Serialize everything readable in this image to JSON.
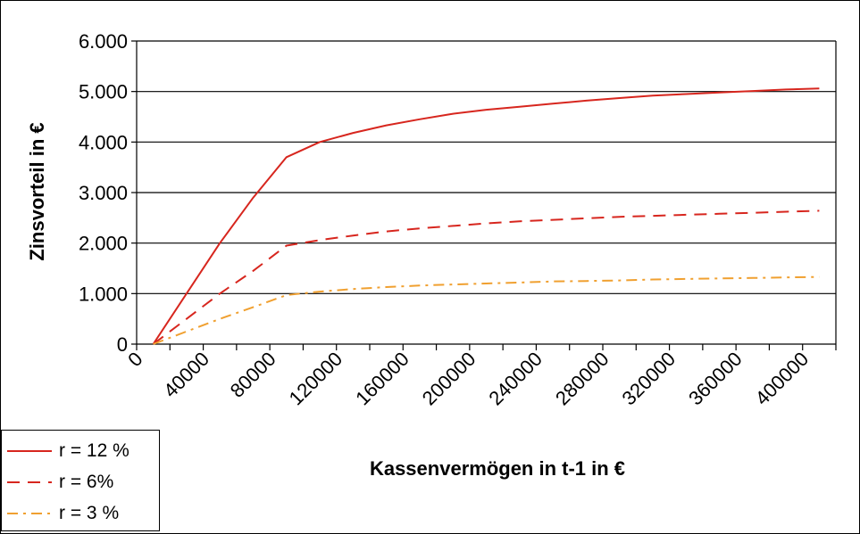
{
  "chart_data": {
    "type": "line",
    "title": "",
    "xlabel": "Kassenvermögen in t-1 in €",
    "ylabel": "Zinsvorteil in €",
    "xlim": [
      0,
      420000
    ],
    "ylim": [
      0,
      6000
    ],
    "x_ticks": [
      0,
      40000,
      80000,
      120000,
      160000,
      200000,
      240000,
      280000,
      320000,
      360000,
      400000
    ],
    "x_tick_labels": [
      "0",
      "40000",
      "80000",
      "120000",
      "160000",
      "200000",
      "240000",
      "280000",
      "320000",
      "360000",
      "400000"
    ],
    "y_ticks": [
      0,
      1000,
      2000,
      3000,
      4000,
      5000,
      6000
    ],
    "y_tick_labels": [
      "0",
      "1.000",
      "2.000",
      "3.000",
      "4.000",
      "5.000",
      "6.000"
    ],
    "grid": "horizontal",
    "legend_position": "bottom-left",
    "series": [
      {
        "name": "r = 12 %",
        "color": "#d7261e",
        "style": "solid",
        "x": [
          10000,
          30000,
          50000,
          70000,
          90000,
          110000,
          130000,
          150000,
          170000,
          190000,
          210000,
          230000,
          250000,
          270000,
          290000,
          310000,
          330000,
          350000,
          370000,
          390000,
          410000
        ],
        "y": [
          0,
          1000,
          2000,
          2900,
          3700,
          4000,
          4180,
          4330,
          4450,
          4560,
          4640,
          4700,
          4760,
          4820,
          4870,
          4920,
          4950,
          4980,
          5010,
          5040,
          5060
        ]
      },
      {
        "name": "r = 6%",
        "color": "#d7261e",
        "style": "dashed",
        "x": [
          10000,
          30000,
          50000,
          70000,
          90000,
          110000,
          130000,
          150000,
          170000,
          190000,
          210000,
          230000,
          250000,
          270000,
          290000,
          310000,
          330000,
          350000,
          370000,
          390000,
          410000
        ],
        "y": [
          0,
          500,
          1000,
          1450,
          1950,
          2060,
          2150,
          2230,
          2290,
          2340,
          2390,
          2430,
          2460,
          2490,
          2520,
          2540,
          2560,
          2580,
          2600,
          2620,
          2640
        ]
      },
      {
        "name": "r = 3 %",
        "color": "#f0a030",
        "style": "dash-dot",
        "x": [
          10000,
          30000,
          50000,
          70000,
          90000,
          110000,
          130000,
          150000,
          170000,
          190000,
          210000,
          230000,
          250000,
          270000,
          290000,
          310000,
          330000,
          350000,
          370000,
          390000,
          410000
        ],
        "y": [
          0,
          250,
          500,
          730,
          970,
          1040,
          1090,
          1130,
          1160,
          1180,
          1200,
          1220,
          1240,
          1250,
          1260,
          1280,
          1290,
          1300,
          1310,
          1320,
          1330
        ]
      }
    ]
  }
}
